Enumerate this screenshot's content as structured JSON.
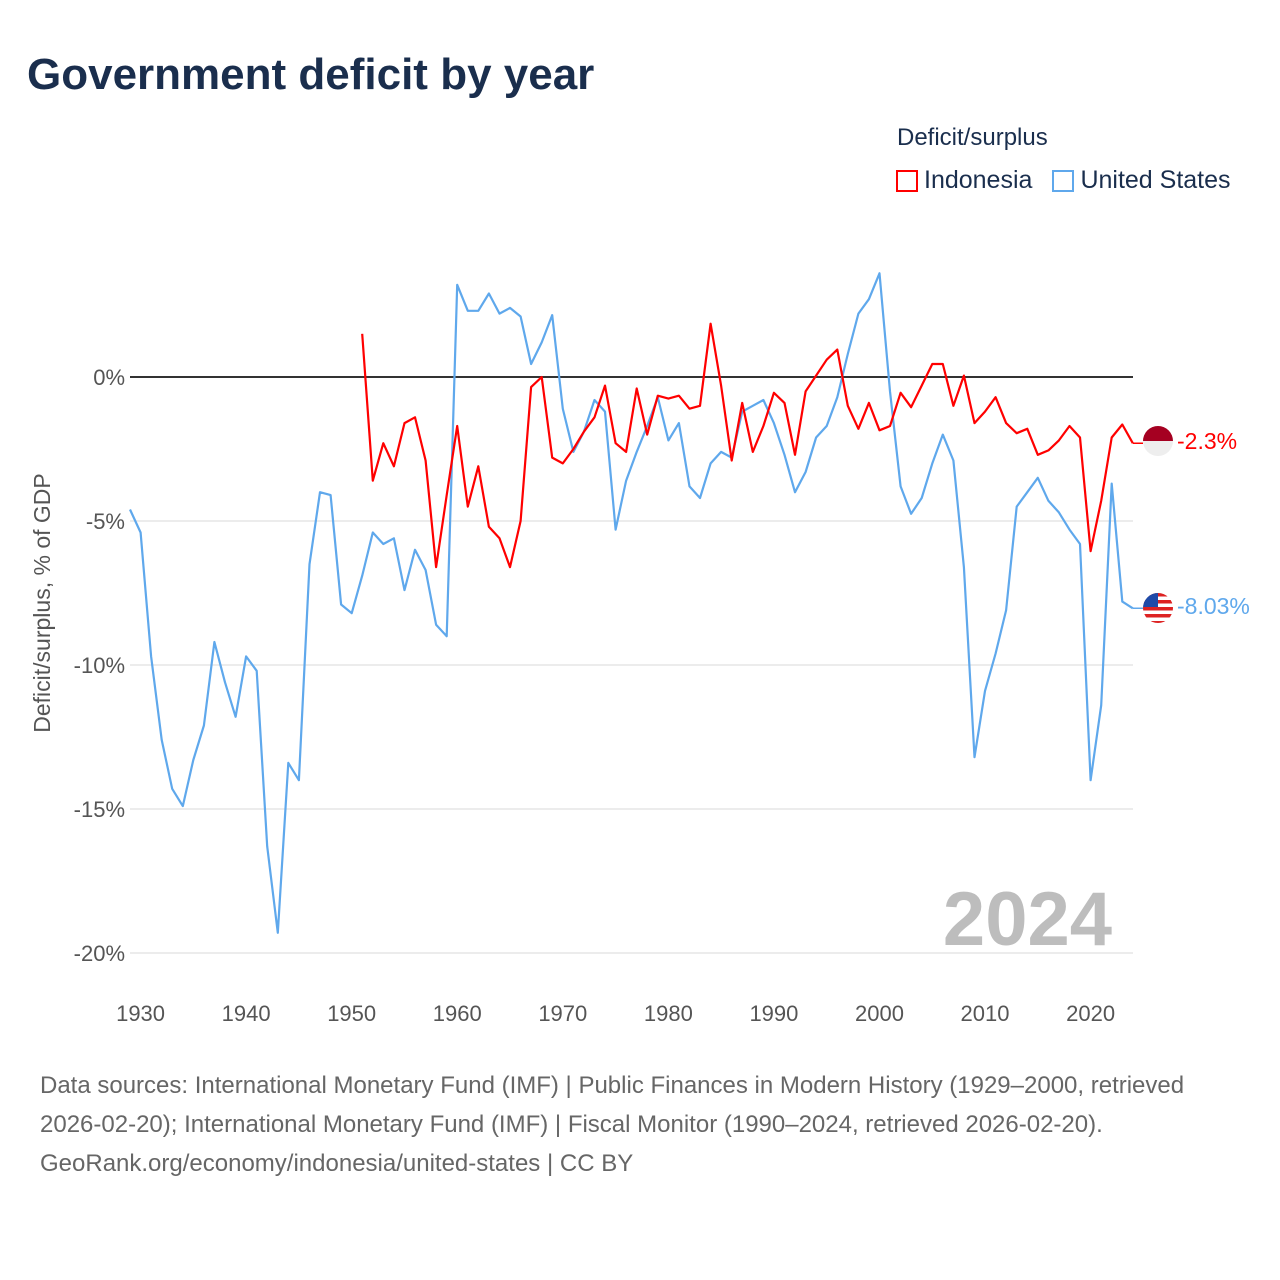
{
  "title": "Government deficit by year",
  "legend": {
    "title": "Deficit/surplus",
    "items": [
      {
        "name": "Indonesia",
        "color": "#ff0000"
      },
      {
        "name": "United States",
        "color": "#5fa8ec"
      }
    ]
  },
  "current_year": "2024",
  "end_labels": {
    "indonesia": "-2.3%",
    "united_states": "-8.03%"
  },
  "footer": {
    "sources": "Data sources: International Monetary Fund (IMF) | Public Finances in Modern History (1929–2000, retrieved 2026-02-20); International Monetary Fund (IMF) | Fiscal Monitor (1990–2024, retrieved 2026-02-20).",
    "credit": "GeoRank.org/economy/indonesia/united-states | CC BY"
  },
  "chart_data": {
    "type": "line",
    "title": "Government deficit by year",
    "xlabel": "",
    "ylabel": "Deficit/surplus, % of GDP",
    "xlim": [
      1929,
      2024
    ],
    "ylim": [
      -20,
      3.6
    ],
    "x_ticks": [
      "1930",
      "1940",
      "1950",
      "1960",
      "1970",
      "1980",
      "1990",
      "2000",
      "2010",
      "2020"
    ],
    "y_ticks": [
      {
        "value": 0,
        "label": "0%"
      },
      {
        "value": -5,
        "label": "-5%"
      },
      {
        "value": -10,
        "label": "-10%"
      },
      {
        "value": -15,
        "label": "-15%"
      },
      {
        "value": -20,
        "label": "-20%"
      }
    ],
    "grid": true,
    "legend_position": "top-right",
    "series": [
      {
        "name": "Indonesia",
        "color": "#ff0000",
        "start_year": 1951,
        "values": [
          1.5,
          -3.6,
          -2.3,
          -3.1,
          -1.6,
          -1.4,
          -2.9,
          -6.6,
          -4.1,
          -1.7,
          -4.5,
          -3.1,
          -5.2,
          -5.6,
          -6.6,
          -5.0,
          -0.35,
          0.0,
          -2.8,
          -3.0,
          -2.5,
          -1.9,
          -1.4,
          -0.3,
          -2.3,
          -2.6,
          -0.4,
          -2.0,
          -0.65,
          -0.75,
          -0.65,
          -1.1,
          -1.0,
          1.85,
          -0.3,
          -2.9,
          -0.9,
          -2.6,
          -1.7,
          -0.55,
          -0.9,
          -2.7,
          -0.5,
          0.05,
          0.6,
          0.95,
          -1.0,
          -1.8,
          -0.9,
          -1.85,
          -1.7,
          -0.55,
          -1.05,
          -0.3,
          0.45,
          0.45,
          -1.0,
          0.05,
          -1.6,
          -1.2,
          -0.7,
          -1.6,
          -1.95,
          -1.8,
          -2.7,
          -2.55,
          -2.2,
          -1.7,
          -2.1,
          -6.05,
          -4.3,
          -2.1,
          -1.65,
          -2.3
        ]
      },
      {
        "name": "United States",
        "color": "#5fa8ec",
        "start_year": 1929,
        "values": [
          -4.6,
          -5.4,
          -9.7,
          -12.6,
          -14.3,
          -14.9,
          -13.3,
          -12.1,
          -9.2,
          -10.6,
          -11.8,
          -9.7,
          -10.2,
          -16.3,
          -19.3,
          -13.4,
          -14.0,
          -6.5,
          -4.0,
          -4.1,
          -7.9,
          -8.2,
          -6.9,
          -5.4,
          -5.8,
          -5.6,
          -7.4,
          -6.0,
          -6.7,
          -8.6,
          -9.0,
          3.2,
          2.3,
          2.3,
          2.9,
          2.2,
          2.4,
          2.1,
          0.45,
          1.2,
          2.15,
          -1.1,
          -2.6,
          -1.9,
          -0.8,
          -1.2,
          -5.3,
          -3.6,
          -2.6,
          -1.7,
          -0.7,
          -2.2,
          -1.6,
          -3.8,
          -4.2,
          -3.0,
          -2.6,
          -2.8,
          -1.2,
          -1.0,
          -0.8,
          -1.6,
          -2.7,
          -4.0,
          -3.3,
          -2.1,
          -1.7,
          -0.7,
          0.8,
          2.2,
          2.7,
          3.6,
          -0.5,
          -3.8,
          -4.75,
          -4.2,
          -3.0,
          -2.0,
          -2.9,
          -6.6,
          -13.2,
          -10.9,
          -9.6,
          -8.1,
          -4.5,
          -4.0,
          -3.5,
          -4.3,
          -4.7,
          -5.3,
          -5.8,
          -14.0,
          -11.4,
          -3.7,
          -7.8,
          -8.03
        ]
      }
    ]
  }
}
